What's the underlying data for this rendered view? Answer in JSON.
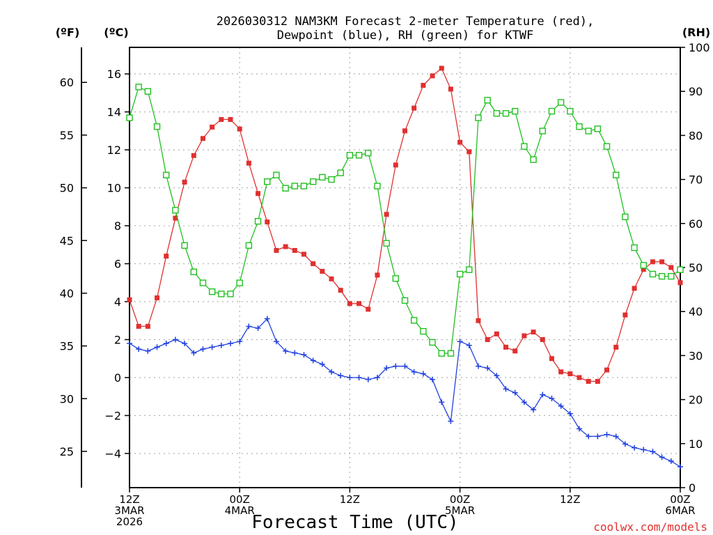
{
  "chart_data": {
    "type": "line",
    "title_line1": "2026030312 NAM3KM Forecast 2-meter Temperature (red),",
    "title_line2": "Dewpoint (blue), RH (green) for KTWF",
    "xlabel": "Forecast Time (UTC)",
    "credit": "coolwx.com/models",
    "units": {
      "fahrenheit": "(ºF)",
      "celsius": "(ºC)",
      "rh": "(RH)"
    },
    "x_range_hours": [
      0,
      60
    ],
    "celsius_range": [
      -5.8,
      17.4
    ],
    "rh_range": [
      0,
      100
    ],
    "celsius_ticks": [
      16,
      14,
      12,
      10,
      8,
      6,
      4,
      2,
      0,
      -2,
      -4
    ],
    "celsius_tick_labels": [
      "16",
      "14",
      "12",
      "10",
      "8",
      "6",
      "4",
      "2",
      "0",
      "−2",
      "−4"
    ],
    "fahrenheit_ticks": [
      60,
      55,
      50,
      45,
      40,
      35,
      30,
      25
    ],
    "fahrenheit_tick_labels": [
      "60",
      "55",
      "50",
      "45",
      "40",
      "35",
      "30",
      "25"
    ],
    "rh_ticks": [
      100,
      90,
      80,
      70,
      60,
      50,
      40,
      30,
      20,
      10,
      0
    ],
    "rh_tick_labels": [
      "100",
      "90",
      "80",
      "70",
      "60",
      "50",
      "40",
      "30",
      "20",
      "10",
      "0"
    ],
    "x_ticks": [
      {
        "hour": 0,
        "lines": [
          "12Z",
          "3MAR",
          "2026"
        ]
      },
      {
        "hour": 12,
        "lines": [
          "00Z",
          "4MAR"
        ]
      },
      {
        "hour": 24,
        "lines": [
          "12Z"
        ]
      },
      {
        "hour": 36,
        "lines": [
          "00Z",
          "5MAR"
        ]
      },
      {
        "hour": 48,
        "lines": [
          "12Z"
        ]
      },
      {
        "hour": 60,
        "lines": [
          "00Z",
          "6MAR"
        ]
      }
    ],
    "series": [
      {
        "name": "2-meter Temperature",
        "units": "C",
        "color": "#e03030",
        "marker": "square-filled",
        "x": [
          0,
          1,
          2,
          3,
          4,
          5,
          6,
          7,
          8,
          9,
          10,
          11,
          12,
          13,
          14,
          15,
          16,
          17,
          18,
          19,
          20,
          21,
          22,
          23,
          24,
          25,
          26,
          27,
          28,
          29,
          30,
          31,
          32,
          33,
          34,
          35,
          36,
          37,
          38,
          39,
          40,
          41,
          42,
          43,
          44,
          45,
          46,
          47,
          48,
          49,
          50,
          51,
          52,
          53,
          54,
          55,
          56,
          57,
          58,
          59,
          60
        ],
        "values": [
          4.1,
          2.7,
          2.7,
          4.2,
          6.4,
          8.4,
          10.3,
          11.7,
          12.6,
          13.2,
          13.6,
          13.6,
          13.1,
          11.3,
          9.7,
          8.2,
          6.7,
          6.9,
          6.7,
          6.5,
          6.0,
          5.6,
          5.2,
          4.6,
          3.9,
          3.9,
          3.6,
          5.4,
          8.6,
          11.2,
          13.0,
          14.2,
          15.4,
          15.9,
          16.3,
          15.2,
          12.4,
          11.9,
          3.0,
          2.0,
          2.3,
          1.6,
          1.4,
          2.2,
          2.4,
          2.0,
          1.0,
          0.3,
          0.2,
          0.0,
          -0.2,
          -0.2,
          0.4,
          1.6,
          3.3,
          4.7,
          5.7,
          6.1,
          6.1,
          5.8,
          5.0
        ]
      },
      {
        "name": "Dewpoint",
        "units": "C",
        "color": "#2040e0",
        "marker": "plus",
        "x": [
          0,
          1,
          2,
          3,
          4,
          5,
          6,
          7,
          8,
          9,
          10,
          11,
          12,
          13,
          14,
          15,
          16,
          17,
          18,
          19,
          20,
          21,
          22,
          23,
          24,
          25,
          26,
          27,
          28,
          29,
          30,
          31,
          32,
          33,
          34,
          35,
          36,
          37,
          38,
          39,
          40,
          41,
          42,
          43,
          44,
          45,
          46,
          47,
          48,
          49,
          50,
          51,
          52,
          53,
          54,
          55,
          56,
          57,
          58,
          59,
          60
        ],
        "values": [
          1.8,
          1.5,
          1.4,
          1.6,
          1.8,
          2.0,
          1.8,
          1.3,
          1.5,
          1.6,
          1.7,
          1.8,
          1.9,
          2.7,
          2.6,
          3.1,
          1.9,
          1.4,
          1.3,
          1.2,
          0.9,
          0.7,
          0.3,
          0.1,
          0.0,
          0.0,
          -0.1,
          0.0,
          0.5,
          0.6,
          0.6,
          0.3,
          0.2,
          -0.1,
          -1.3,
          -2.3,
          1.9,
          1.7,
          0.6,
          0.5,
          0.1,
          -0.6,
          -0.8,
          -1.3,
          -1.7,
          -0.9,
          -1.1,
          -1.5,
          -1.9,
          -2.7,
          -3.1,
          -3.1,
          -3.0,
          -3.1,
          -3.5,
          -3.7,
          -3.8,
          -3.9,
          -4.2,
          -4.4,
          -4.7
        ]
      },
      {
        "name": "RH",
        "units": "%",
        "color": "#20c020",
        "marker": "square-open",
        "x": [
          0,
          1,
          2,
          3,
          4,
          5,
          6,
          7,
          8,
          9,
          10,
          11,
          12,
          13,
          14,
          15,
          16,
          17,
          18,
          19,
          20,
          21,
          22,
          23,
          24,
          25,
          26,
          27,
          28,
          29,
          30,
          31,
          32,
          33,
          34,
          35,
          36,
          37,
          38,
          39,
          40,
          41,
          42,
          43,
          44,
          45,
          46,
          47,
          48,
          49,
          50,
          51,
          52,
          53,
          54,
          55,
          56,
          57,
          58,
          59,
          60
        ],
        "values": [
          84,
          91,
          90,
          82,
          71,
          63,
          55,
          49,
          46.5,
          44.5,
          44,
          44,
          46.5,
          55,
          60.5,
          69.5,
          71,
          68,
          68.5,
          68.5,
          69.5,
          70.5,
          70,
          71.5,
          75.5,
          75.5,
          76,
          68.5,
          55.5,
          47.5,
          42.5,
          38,
          35.5,
          33,
          30.5,
          30.5,
          48.5,
          49.5,
          84,
          88,
          85,
          85,
          85.5,
          77.5,
          74.5,
          81,
          85.5,
          87.5,
          85.5,
          82,
          81,
          81.5,
          77.5,
          71,
          61.5,
          54.5,
          50.5,
          48.5,
          48,
          48,
          49.5
        ]
      }
    ]
  }
}
